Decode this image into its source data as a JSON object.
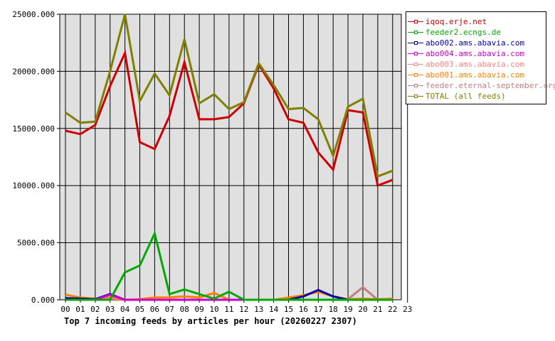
{
  "chart_data": {
    "type": "line",
    "title": "Top 7 incoming feeds by articles per hour (20260227 2307)",
    "xlabel": "",
    "ylabel": "",
    "ylim": [
      0,
      25000
    ],
    "y_ticks": [
      "0.000",
      "5000.000",
      "10000.000",
      "15000.000",
      "20000.000",
      "25000.000"
    ],
    "x": [
      "00",
      "01",
      "02",
      "03",
      "04",
      "05",
      "06",
      "07",
      "08",
      "09",
      "10",
      "11",
      "12",
      "13",
      "14",
      "15",
      "16",
      "17",
      "18",
      "19",
      "20",
      "21",
      "22",
      "23"
    ],
    "grid": true,
    "legend_position": "right",
    "series": [
      {
        "name": "iqoq.erje.net",
        "color": "#cc0000",
        "values": [
          14800,
          14500,
          15300,
          18700,
          21600,
          13800,
          13200,
          16100,
          20800,
          15800,
          15800,
          16000,
          17200,
          20600,
          18500,
          15800,
          15500,
          12900,
          11400,
          16600,
          16400,
          10000,
          10500
        ]
      },
      {
        "name": "feeder2.ecngs.de",
        "color": "#00aa00",
        "values": [
          0,
          0,
          0,
          0,
          2400,
          3000,
          5800,
          500,
          900,
          500,
          100,
          700,
          0,
          0,
          0,
          0,
          0,
          0,
          0,
          0,
          0,
          0,
          0
        ]
      },
      {
        "name": "abo002.ams.abavia.com",
        "color": "#0000aa",
        "values": [
          150,
          100,
          50,
          500,
          0,
          0,
          0,
          0,
          0,
          0,
          0,
          0,
          0,
          0,
          0,
          0,
          300,
          850,
          300,
          0,
          0,
          0,
          0
        ]
      },
      {
        "name": "abo004.ams.abavia.com",
        "color": "#cc00cc",
        "values": [
          0,
          0,
          0,
          450,
          0,
          0,
          0,
          0,
          0,
          0,
          0,
          0,
          0,
          0,
          0,
          0,
          0,
          0,
          0,
          0,
          0,
          0,
          0
        ]
      },
      {
        "name": "abo003.ams.abavia.com",
        "color": "#ff8080",
        "values": [
          0,
          0,
          50,
          300,
          0,
          0,
          0,
          0,
          0,
          0,
          0,
          0,
          0,
          0,
          0,
          0,
          0,
          0,
          0,
          0,
          0,
          0,
          0
        ]
      },
      {
        "name": "abo001.ams.abavia.com",
        "color": "#ff8000",
        "values": [
          450,
          200,
          100,
          200,
          0,
          50,
          200,
          200,
          300,
          200,
          600,
          0,
          0,
          0,
          0,
          200,
          400,
          700,
          300,
          50,
          100,
          50,
          100
        ]
      },
      {
        "name": "feeder.eternal-september.org",
        "color": "#c08080",
        "values": [
          0,
          0,
          0,
          0,
          0,
          0,
          0,
          0,
          0,
          0,
          0,
          0,
          0,
          0,
          0,
          0,
          0,
          0,
          0,
          50,
          1100,
          0,
          0
        ]
      },
      {
        "name": "TOTAL (all feeds)",
        "color": "#808000",
        "values": [
          16400,
          15500,
          15600,
          20000,
          25000,
          17400,
          19800,
          17900,
          22800,
          17200,
          18000,
          16700,
          17300,
          20700,
          18800,
          16700,
          16800,
          15800,
          12600,
          16900,
          17600,
          10800,
          11300
        ]
      }
    ]
  },
  "legend": {
    "items": [
      {
        "label": "iqoq.erje.net",
        "color": "#cc0000"
      },
      {
        "label": "feeder2.ecngs.de",
        "color": "#00aa00"
      },
      {
        "label": "abo002.ams.abavia.com",
        "color": "#0000aa"
      },
      {
        "label": "abo004.ams.abavia.com",
        "color": "#cc00cc"
      },
      {
        "label": "abo003.ams.abavia.com",
        "color": "#ff8080"
      },
      {
        "label": "abo001.ams.abavia.com",
        "color": "#ff8000"
      },
      {
        "label": "feeder.eternal-september.org",
        "color": "#c08080"
      },
      {
        "label": "TOTAL (all feeds)",
        "color": "#808000"
      }
    ]
  },
  "style": {
    "plot_bg": "#e0e0e0",
    "grid_color": "#000000"
  }
}
